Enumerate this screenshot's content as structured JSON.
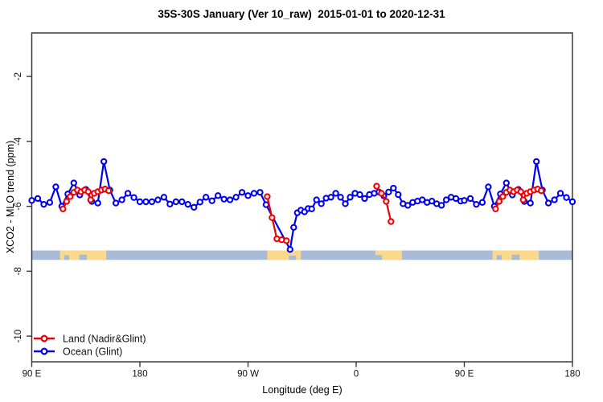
{
  "chart_data": {
    "type": "line",
    "title": "35S-30S January (Ver 10_raw)  2015-01-01 to 2020-12-31",
    "xlabel": "Longitude (deg E)",
    "ylabel": "XCO2 - MLO trend (ppm)",
    "xlim": [
      90,
      540
    ],
    "ylim": [
      -10.79,
      -0.66
    ],
    "grid": false,
    "x_ticks": [
      {
        "lon": 90,
        "label": "90 E"
      },
      {
        "lon": 180,
        "label": "180"
      },
      {
        "lon": 270,
        "label": "90 W"
      },
      {
        "lon": 360,
        "label": "0"
      },
      {
        "lon": 450,
        "label": "90 E"
      },
      {
        "lon": 540,
        "label": "180"
      }
    ],
    "y_ticks": [
      {
        "value": -2,
        "label": "-2"
      },
      {
        "value": -4,
        "label": "-4"
      },
      {
        "value": -6,
        "label": "-6"
      },
      {
        "value": -8,
        "label": "-8"
      },
      {
        "value": -10,
        "label": "-10"
      }
    ],
    "legend": {
      "position": "bottom-left",
      "items": [
        {
          "label": "Land (Nadir&Glint)",
          "color": "#EE0000",
          "marker": "open-circle"
        },
        {
          "label": "Ocean (Glint)",
          "color": "#0000EE",
          "marker": "open-circle"
        }
      ]
    },
    "series": [
      {
        "key": "ocean",
        "name": "Ocean (Glint)",
        "color": "#0000EE",
        "segments": [
          [
            [
              90,
              -5.82
            ],
            [
              95,
              -5.76
            ],
            [
              100,
              -5.94
            ],
            [
              105,
              -5.88
            ],
            [
              110,
              -5.4
            ],
            [
              115,
              -6.0
            ],
            [
              120,
              -5.62
            ],
            [
              125,
              -5.28
            ],
            [
              130,
              -5.65
            ],
            [
              135,
              -5.48
            ],
            [
              140,
              -5.85
            ],
            [
              145,
              -5.9
            ],
            [
              150,
              -4.62
            ],
            [
              155,
              -5.5
            ],
            [
              160,
              -5.9
            ],
            [
              165,
              -5.8
            ],
            [
              170,
              -5.6
            ],
            [
              175,
              -5.73
            ],
            [
              180,
              -5.86
            ],
            [
              185,
              -5.86
            ],
            [
              190,
              -5.86
            ],
            [
              195,
              -5.8
            ],
            [
              200,
              -5.72
            ],
            [
              205,
              -5.93
            ],
            [
              210,
              -5.86
            ],
            [
              215,
              -5.86
            ],
            [
              220,
              -5.94
            ],
            [
              225,
              -6.03
            ],
            [
              230,
              -5.87
            ],
            [
              235,
              -5.72
            ],
            [
              240,
              -5.83
            ],
            [
              245,
              -5.67
            ],
            [
              250,
              -5.78
            ],
            [
              255,
              -5.8
            ],
            [
              260,
              -5.72
            ],
            [
              265,
              -5.57
            ],
            [
              270,
              -5.67
            ],
            [
              275,
              -5.6
            ],
            [
              280,
              -5.57
            ],
            [
              285,
              -5.95
            ],
            [
              305,
              -7.33
            ],
            [
              308,
              -6.65
            ],
            [
              311,
              -6.2
            ],
            [
              314,
              -6.12
            ],
            [
              317,
              -6.17
            ],
            [
              320,
              -6.07
            ],
            [
              323,
              -6.08
            ],
            [
              327,
              -5.8
            ],
            [
              331,
              -5.92
            ],
            [
              335,
              -5.75
            ],
            [
              339,
              -5.72
            ],
            [
              343,
              -5.6
            ],
            [
              347,
              -5.72
            ],
            [
              351,
              -5.92
            ],
            [
              355,
              -5.72
            ],
            [
              359,
              -5.6
            ],
            [
              363,
              -5.64
            ],
            [
              367,
              -5.76
            ],
            [
              371,
              -5.64
            ],
            [
              375,
              -5.6
            ],
            [
              379,
              -5.56
            ],
            [
              383,
              -5.68
            ],
            [
              387,
              -5.56
            ],
            [
              391,
              -5.44
            ],
            [
              395,
              -5.64
            ],
            [
              399,
              -5.92
            ],
            [
              403,
              -5.97
            ],
            [
              407,
              -5.88
            ],
            [
              411,
              -5.84
            ],
            [
              415,
              -5.8
            ],
            [
              419,
              -5.88
            ],
            [
              423,
              -5.84
            ],
            [
              427,
              -5.92
            ],
            [
              431,
              -5.97
            ],
            [
              435,
              -5.8
            ],
            [
              439,
              -5.72
            ],
            [
              443,
              -5.76
            ],
            [
              447,
              -5.84
            ],
            [
              450,
              -5.82
            ],
            [
              455,
              -5.76
            ],
            [
              460,
              -5.94
            ],
            [
              465,
              -5.88
            ],
            [
              470,
              -5.4
            ],
            [
              475,
              -6.0
            ],
            [
              480,
              -5.62
            ],
            [
              485,
              -5.28
            ],
            [
              490,
              -5.65
            ],
            [
              495,
              -5.48
            ],
            [
              500,
              -5.85
            ],
            [
              505,
              -5.9
            ],
            [
              510,
              -4.62
            ],
            [
              515,
              -5.5
            ],
            [
              520,
              -5.9
            ],
            [
              525,
              -5.8
            ],
            [
              530,
              -5.6
            ],
            [
              535,
              -5.73
            ],
            [
              540,
              -5.86
            ]
          ]
        ]
      },
      {
        "key": "land",
        "name": "Land (Nadir&Glint)",
        "color": "#EE0000",
        "segments": [
          [
            [
              116,
              -6.08
            ],
            [
              119,
              -5.85
            ],
            [
              122,
              -5.7
            ],
            [
              125,
              -5.57
            ],
            [
              128,
              -5.5
            ],
            [
              131,
              -5.55
            ],
            [
              134,
              -5.5
            ],
            [
              137,
              -5.55
            ],
            [
              139,
              -5.8
            ],
            [
              142,
              -5.6
            ],
            [
              145,
              -5.55
            ],
            [
              148,
              -5.5
            ],
            [
              151,
              -5.47
            ],
            [
              154,
              -5.52
            ]
          ],
          [
            [
              286,
              -5.7
            ],
            [
              290,
              -6.35
            ],
            [
              294,
              -7.0
            ],
            [
              298,
              -7.03
            ],
            [
              302,
              -7.06
            ]
          ],
          [
            [
              377,
              -5.38
            ],
            [
              381,
              -5.6
            ],
            [
              385,
              -5.85
            ],
            [
              389,
              -6.47
            ]
          ],
          [
            [
              476,
              -6.08
            ],
            [
              479,
              -5.85
            ],
            [
              482,
              -5.7
            ],
            [
              485,
              -5.57
            ],
            [
              488,
              -5.5
            ],
            [
              491,
              -5.55
            ],
            [
              494,
              -5.5
            ],
            [
              497,
              -5.55
            ],
            [
              499,
              -5.8
            ],
            [
              502,
              -5.6
            ],
            [
              505,
              -5.55
            ],
            [
              508,
              -5.5
            ],
            [
              511,
              -5.47
            ],
            [
              514,
              -5.52
            ]
          ]
        ]
      }
    ],
    "map_strip": {
      "y_top": -7.36,
      "y_bottom": -7.65,
      "ocean_color": "#A9BBD7",
      "land_color": "#FBD98B",
      "land_patches": [
        {
          "from": 113.5,
          "to": 152,
          "notches": [
            {
              "from": 117,
              "to": 121,
              "depth": 0.5
            },
            {
              "from": 129.5,
              "to": 136,
              "depth": 0.55
            }
          ]
        },
        {
          "from": 286,
          "to": 314,
          "notches": [
            {
              "from": 304,
              "to": 310,
              "depth": 0.45
            }
          ]
        },
        {
          "from": 376,
          "to": 398,
          "notches": [
            {
              "from": 376,
              "to": 381.5,
              "depth": 0.5
            }
          ]
        },
        {
          "from": 473.5,
          "to": 512,
          "notches": [
            {
              "from": 477,
              "to": 481,
              "depth": 0.5
            },
            {
              "from": 489.5,
              "to": 496,
              "depth": 0.55
            }
          ]
        }
      ]
    }
  }
}
